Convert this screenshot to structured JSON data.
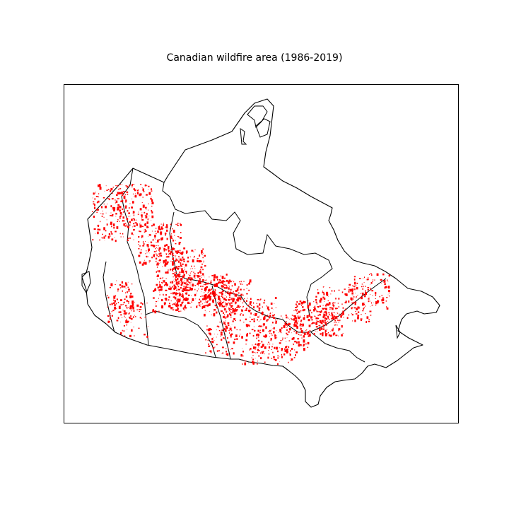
{
  "figure": {
    "title": "Canadian wildfire area (1986-2019)"
  },
  "map": {
    "region": "Canada",
    "fire_color": "#ff0000",
    "boundary_color": "#000000",
    "background_color": "#ffffff"
  }
}
